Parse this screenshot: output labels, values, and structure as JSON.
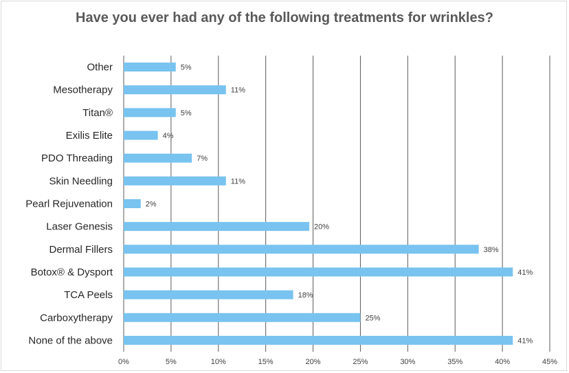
{
  "chart_data": {
    "type": "bar",
    "orientation": "horizontal",
    "title": "Have you ever had any of the following treatments for wrinkles?",
    "xlabel": "",
    "ylabel": "",
    "categories": [
      "Other",
      "Mesotherapy",
      "Titan®",
      "Exilis Elite",
      "PDO Threading",
      "Skin Needling",
      "Pearl Rejuvenation",
      "Laser Genesis",
      "Dermal Fillers",
      "Botox® & Dysport",
      "TCA Peels",
      "Carboxytherapy",
      "None of the above"
    ],
    "values": [
      5.5,
      10.8,
      5.5,
      3.6,
      7.2,
      10.8,
      1.8,
      19.6,
      37.5,
      41.1,
      17.9,
      25.0,
      41.1
    ],
    "data_labels": [
      "5%",
      "11%",
      "5%",
      "4%",
      "7%",
      "11%",
      "2%",
      "20%",
      "38%",
      "41%",
      "18%",
      "25%",
      "41%"
    ],
    "xlim": [
      0,
      45
    ],
    "x_ticks": [
      0,
      5,
      10,
      15,
      20,
      25,
      30,
      35,
      40,
      45
    ],
    "x_tick_labels": [
      "0%",
      "5%",
      "10%",
      "15%",
      "20%",
      "25%",
      "30%",
      "35%",
      "40%",
      "45%"
    ],
    "grid": true,
    "legend": false,
    "colors": {
      "bar": "#78c3ef",
      "grid": "#595959",
      "title": "#595959",
      "text": "#262626"
    }
  }
}
